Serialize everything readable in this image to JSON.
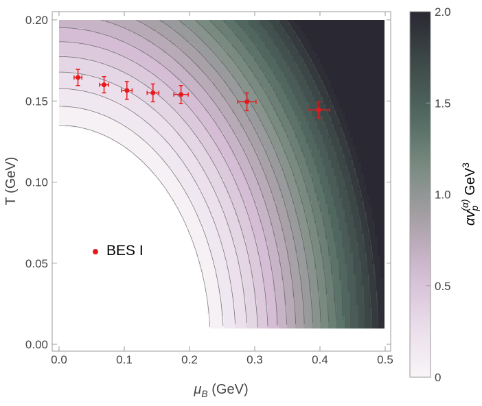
{
  "chart_data": {
    "type": "contour",
    "xlabel": "μB (GeV)",
    "xlabel_main": "μ",
    "xlabel_sub": "B",
    "xlabel_unit": " (GeV)",
    "ylabel": "T (GeV)",
    "xlim": [
      0,
      0.5
    ],
    "ylim": [
      0,
      0.2
    ],
    "x_ticks": [
      "0.0",
      "0.1",
      "0.2",
      "0.3",
      "0.4",
      "0.5"
    ],
    "y_ticks": [
      "0.00",
      "0.05",
      "0.10",
      "0.15",
      "0.20"
    ],
    "colorbar": {
      "title": "αvp(α) GeV3",
      "title_prefix": "αv",
      "title_sub": "p",
      "title_sup": "(α)",
      "title_unit": " GeV",
      "title_unit_sup": "3",
      "range": [
        0,
        2.0
      ],
      "ticks": [
        "0",
        "0.5",
        "1.0",
        "1.5",
        "2.0"
      ],
      "colors": [
        "#f8f5f8",
        "#e9dde9",
        "#d3bcd3",
        "#a8a0a7",
        "#7a8c82",
        "#516961",
        "#3e4a49",
        "#2a2832"
      ]
    },
    "contour_levels": [
      0.1,
      0.2,
      0.3,
      0.4,
      0.5,
      0.6,
      0.7,
      0.8,
      0.9,
      1.0,
      1.1,
      1.2,
      1.3,
      1.4,
      1.5,
      1.6,
      1.7,
      1.8,
      1.9
    ],
    "series": [
      {
        "name": "BES I",
        "color": "#e8191c",
        "points": [
          {
            "x": 0.029,
            "y": 0.1645,
            "xerr": 0.006,
            "yerr": 0.005
          },
          {
            "x": 0.069,
            "y": 0.16,
            "xerr": 0.007,
            "yerr": 0.005
          },
          {
            "x": 0.104,
            "y": 0.1565,
            "xerr": 0.008,
            "yerr": 0.0055
          },
          {
            "x": 0.144,
            "y": 0.155,
            "xerr": 0.009,
            "yerr": 0.0055
          },
          {
            "x": 0.187,
            "y": 0.154,
            "xerr": 0.011,
            "yerr": 0.0055
          },
          {
            "x": 0.288,
            "y": 0.1495,
            "xerr": 0.014,
            "yerr": 0.0055
          },
          {
            "x": 0.398,
            "y": 0.1445,
            "xerr": 0.017,
            "yerr": 0.005
          }
        ]
      }
    ],
    "legend": {
      "label": "BES I",
      "placement": "bottom-left"
    }
  }
}
